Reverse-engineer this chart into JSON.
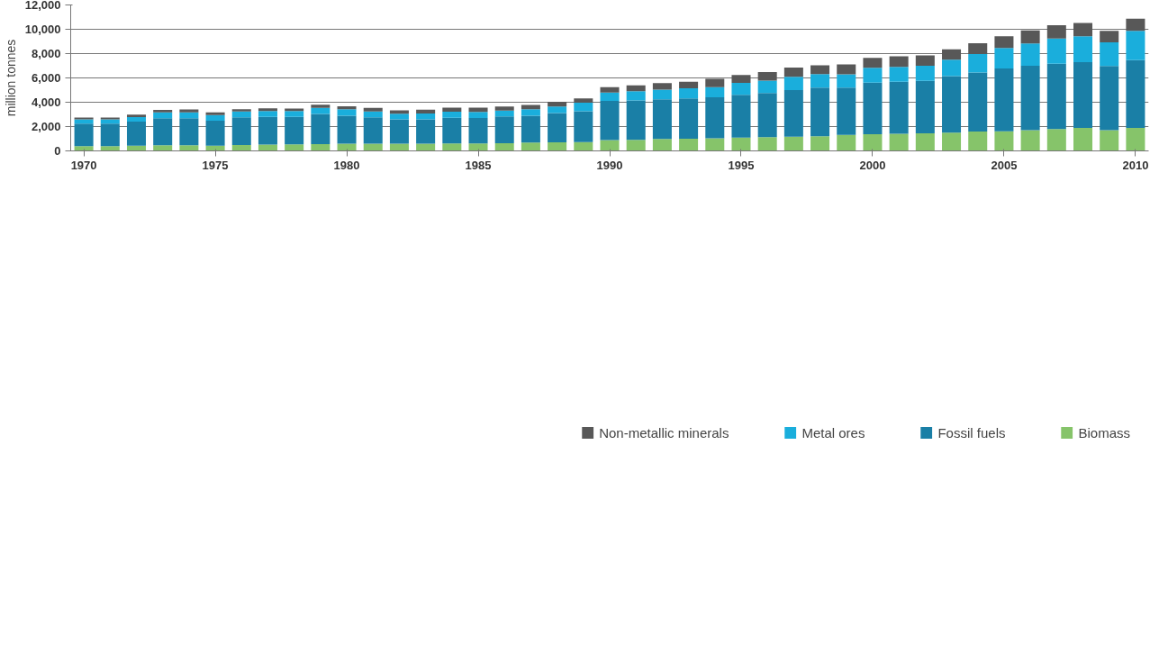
{
  "chart_data": {
    "type": "bar",
    "stacked": true,
    "ylabel": "million tonnes",
    "x": [
      1970,
      1971,
      1972,
      1973,
      1974,
      1975,
      1976,
      1977,
      1978,
      1979,
      1980,
      1981,
      1982,
      1983,
      1984,
      1985,
      1986,
      1987,
      1988,
      1989,
      1990,
      1991,
      1992,
      1993,
      1994,
      1995,
      1996,
      1997,
      1998,
      1999,
      2000,
      2001,
      2002,
      2003,
      2004,
      2005,
      2006,
      2007,
      2008,
      2009,
      2010
    ],
    "xlim": [
      1969.5,
      2010.5
    ],
    "xticks": [
      1970,
      1975,
      1980,
      1985,
      1990,
      1995,
      2000,
      2005,
      2010
    ],
    "ylim": [
      0,
      12000
    ],
    "yticks": [
      0,
      {
        "value": 2000,
        "label": "2,000"
      },
      {
        "value": 4000,
        "label": "4,000"
      },
      {
        "value": 6000,
        "label": "6,000"
      },
      {
        "value": 8000,
        "label": "8,000"
      },
      {
        "value": 10000,
        "label": "10,000"
      },
      {
        "value": 12000,
        "label": "12,000"
      }
    ],
    "grid": "y",
    "legend": "bottom",
    "series": [
      {
        "name": "Biomass",
        "color": "#86c46a",
        "values": [
          380,
          380,
          420,
          470,
          460,
          430,
          480,
          520,
          530,
          560,
          600,
          600,
          600,
          600,
          620,
          620,
          630,
          680,
          700,
          720,
          880,
          910,
          990,
          1000,
          1040,
          1090,
          1130,
          1170,
          1200,
          1310,
          1370,
          1400,
          1450,
          1500,
          1590,
          1610,
          1710,
          1790,
          1880,
          1710,
          1880
        ]
      },
      {
        "name": "Fossil fuels",
        "color": "#1a7fa6",
        "values": [
          1870,
          1870,
          1980,
          2210,
          2220,
          2050,
          2280,
          2280,
          2270,
          2470,
          2290,
          2160,
          2000,
          2000,
          2100,
          2080,
          2210,
          2200,
          2420,
          2540,
          3240,
          3230,
          3250,
          3310,
          3360,
          3520,
          3630,
          3830,
          4010,
          3900,
          4240,
          4290,
          4310,
          4640,
          4850,
          5170,
          5290,
          5370,
          5420,
          5280,
          5580
        ]
      },
      {
        "name": "Metal ores",
        "color": "#1aaedc",
        "values": [
          350,
          350,
          380,
          490,
          490,
          470,
          480,
          480,
          470,
          500,
          530,
          490,
          460,
          480,
          500,
          500,
          480,
          540,
          530,
          710,
          670,
          760,
          800,
          830,
          840,
          990,
          1020,
          1100,
          1100,
          1090,
          1220,
          1220,
          1240,
          1360,
          1520,
          1680,
          1840,
          2090,
          2120,
          1930,
          2410
        ]
      },
      {
        "name": "Non-metallic minerals",
        "color": "#585858",
        "values": [
          150,
          150,
          200,
          200,
          230,
          220,
          180,
          220,
          210,
          270,
          240,
          280,
          270,
          300,
          340,
          350,
          330,
          360,
          380,
          340,
          450,
          480,
          530,
          540,
          680,
          650,
          700,
          750,
          730,
          810,
          810,
          870,
          850,
          850,
          900,
          960,
          1060,
          1090,
          1090,
          950,
          1000
        ]
      }
    ]
  }
}
